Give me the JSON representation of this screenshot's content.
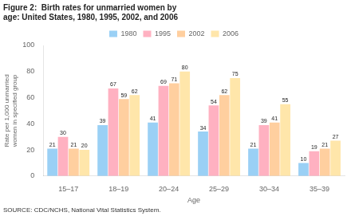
{
  "chart_data": {
    "type": "bar",
    "title": "Figure 2:  Birth rates for unmarried women by age: United States, 1980, 1995, 2002, and 2006",
    "source": "SOURCE: CDC/NCHS, National Vital Statistics System.",
    "xlabel": "Age",
    "ylabel": "Rate per 1,000 unmarried women in specified group",
    "categories": [
      "15–17",
      "18–19",
      "20–24",
      "25–29",
      "30–34",
      "35–39"
    ],
    "series": [
      {
        "name": "1980",
        "values": [
          21,
          39,
          41,
          34,
          21,
          10
        ]
      },
      {
        "name": "1995",
        "values": [
          30,
          67,
          69,
          54,
          39,
          19
        ]
      },
      {
        "name": "2002",
        "values": [
          21,
          59,
          71,
          62,
          41,
          21
        ]
      },
      {
        "name": "2006",
        "values": [
          20,
          62,
          80,
          75,
          55,
          27
        ]
      }
    ],
    "ylim": [
      0,
      100
    ],
    "yticks": [
      0,
      20,
      40,
      60,
      80,
      100
    ],
    "grid": false,
    "legend": "top",
    "data_labels": true
  }
}
